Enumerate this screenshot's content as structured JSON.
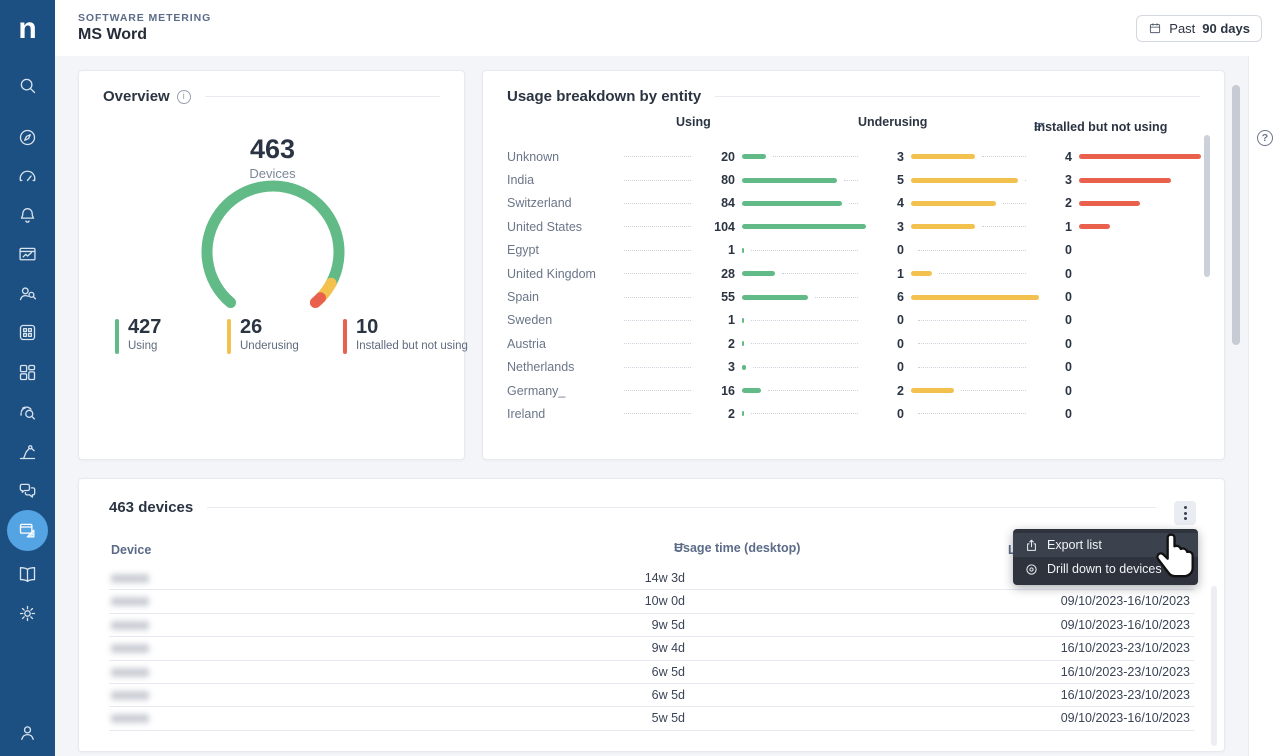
{
  "header": {
    "eyebrow": "SOFTWARE METERING",
    "title": "MS Word",
    "date_button": {
      "prefix": "Past",
      "value": "90 days",
      "icon": "calendar-icon"
    }
  },
  "sidebar": {
    "logo": "n",
    "icons": [
      "search",
      "compass",
      "gauge",
      "bell",
      "monitor-chart",
      "user-search",
      "apps-grid",
      "layout-blocks",
      "fingerprint-search",
      "robot-arm",
      "chat-bubbles",
      "window-ruler",
      "open-book",
      "gear",
      "user"
    ],
    "active_icon": "window-ruler"
  },
  "colors": {
    "green": "#62ba86",
    "yellow": "#f2c14e",
    "red": "#e9604d",
    "sidebar": "#1d5082",
    "active_item": "#54a3e3",
    "menu_bg": "#2e333d"
  },
  "overview": {
    "title": "Overview",
    "gauge": {
      "total": "463",
      "total_label": "Devices",
      "start_degrees": 130,
      "sweep_degrees": 280,
      "segments": [
        {
          "label": "Using",
          "value": 427,
          "color": "#62ba86"
        },
        {
          "label": "Underusing",
          "value": 26,
          "color": "#f2c14e"
        },
        {
          "label": "Installed but not using",
          "value": 10,
          "color": "#e9604d"
        }
      ]
    }
  },
  "usage_breakdown": {
    "title": "Usage breakdown by entity",
    "columns": [
      "Using",
      "Underusing",
      "Installed but not using"
    ],
    "sorted_column": "Installed but not using",
    "rows": [
      {
        "entity": "Unknown",
        "values": [
          20,
          3,
          4
        ]
      },
      {
        "entity": "India",
        "values": [
          80,
          5,
          3
        ]
      },
      {
        "entity": "Switzerland",
        "values": [
          84,
          4,
          2
        ]
      },
      {
        "entity": "United States",
        "values": [
          104,
          3,
          1
        ]
      },
      {
        "entity": "Egypt",
        "values": [
          1,
          0,
          0
        ]
      },
      {
        "entity": "United Kingdom",
        "values": [
          28,
          1,
          0
        ]
      },
      {
        "entity": "Spain",
        "values": [
          55,
          6,
          0
        ]
      },
      {
        "entity": "Sweden",
        "values": [
          1,
          0,
          0
        ]
      },
      {
        "entity": "Austria",
        "values": [
          2,
          0,
          0
        ]
      },
      {
        "entity": "Netherlands",
        "values": [
          3,
          0,
          0
        ]
      },
      {
        "entity": "Germany_",
        "values": [
          16,
          2,
          0
        ]
      },
      {
        "entity": "Ireland",
        "values": [
          2,
          0,
          0
        ]
      }
    ]
  },
  "devices": {
    "title": "463 devices",
    "columns": {
      "device": "Device",
      "usage": "Usage time (desktop)",
      "last_visible": "L"
    },
    "rows": [
      {
        "device": "",
        "usage": "14w 3d",
        "period": "09/10/2023-16/10/2023"
      },
      {
        "device": "",
        "usage": "10w 0d",
        "period": "09/10/2023-16/10/2023"
      },
      {
        "device": "",
        "usage": "9w 5d",
        "period": "09/10/2023-16/10/2023"
      },
      {
        "device": "",
        "usage": "9w 4d",
        "period": "16/10/2023-23/10/2023"
      },
      {
        "device": "",
        "usage": "6w 5d",
        "period": "16/10/2023-23/10/2023"
      },
      {
        "device": "",
        "usage": "6w 5d",
        "period": "16/10/2023-23/10/2023"
      },
      {
        "device": "",
        "usage": "5w 5d",
        "period": "09/10/2023-16/10/2023"
      }
    ]
  },
  "context_menu": {
    "items": [
      {
        "label": "Export list",
        "icon": "export-icon"
      },
      {
        "label": "Drill down to devices",
        "icon": "drilldown-icon"
      }
    ]
  },
  "help": {
    "icon_text": "?"
  },
  "chart_data": [
    {
      "type": "pie",
      "title": "Overview",
      "labels": [
        "Using",
        "Underusing",
        "Installed but not using"
      ],
      "values": [
        427,
        26,
        10
      ],
      "center_total": 463,
      "center_label": "Devices",
      "colors": [
        "#62ba86",
        "#f2c14e",
        "#e9604d"
      ],
      "style": "gauge-donut, bottom gap"
    },
    {
      "type": "bar",
      "title": "Usage breakdown by entity",
      "orientation": "horizontal",
      "categories": [
        "Unknown",
        "India",
        "Switzerland",
        "United States",
        "Egypt",
        "United Kingdom",
        "Spain",
        "Sweden",
        "Austria",
        "Netherlands",
        "Germany_",
        "Ireland"
      ],
      "series": [
        {
          "name": "Using",
          "values": [
            20,
            80,
            84,
            104,
            1,
            28,
            55,
            1,
            2,
            3,
            16,
            2
          ]
        },
        {
          "name": "Underusing",
          "values": [
            3,
            5,
            4,
            3,
            0,
            1,
            6,
            0,
            0,
            0,
            2,
            0
          ]
        },
        {
          "name": "Installed but not using",
          "values": [
            4,
            3,
            2,
            1,
            0,
            0,
            0,
            0,
            0,
            0,
            0,
            0
          ]
        }
      ],
      "legend_position": "column headers",
      "grid": false
    }
  ]
}
